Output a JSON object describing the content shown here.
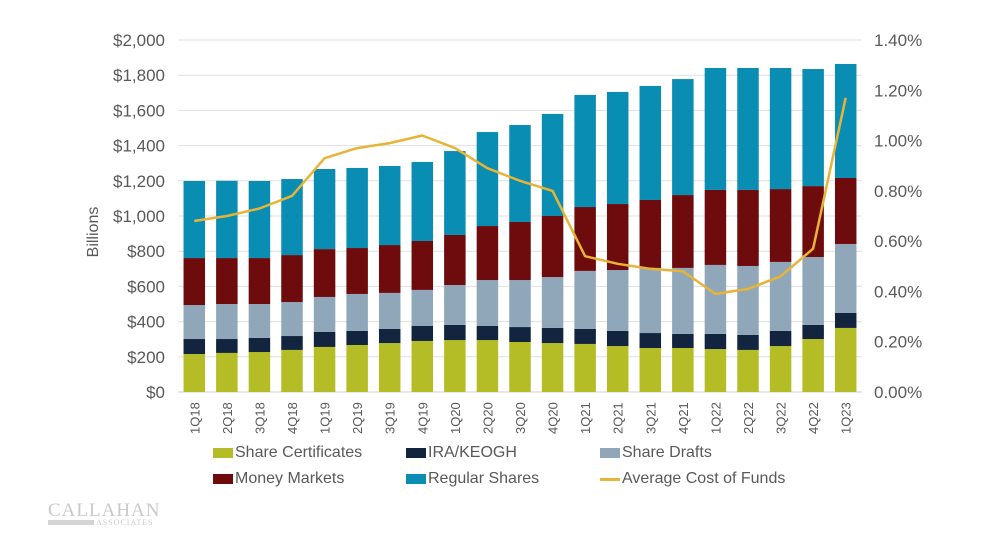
{
  "chart_data": {
    "type": "bar",
    "stacked": true,
    "title": "",
    "xlabel": "",
    "ylabel": "Billions",
    "y2label": "",
    "ylim": [
      0,
      2000
    ],
    "y2lim": [
      0,
      1.4
    ],
    "grid": true,
    "legend_position": "bottom",
    "categories": [
      "1Q18",
      "2Q18",
      "3Q18",
      "4Q18",
      "1Q19",
      "2Q19",
      "3Q19",
      "4Q19",
      "1Q20",
      "2Q20",
      "3Q20",
      "4Q20",
      "1Q21",
      "2Q21",
      "3Q21",
      "4Q21",
      "1Q22",
      "2Q22",
      "3Q22",
      "4Q22",
      "1Q23"
    ],
    "yticks": [
      "$0",
      "$200",
      "$400",
      "$600",
      "$800",
      "$1,000",
      "$1,200",
      "$1,400",
      "$1,600",
      "$1,800",
      "$2,000"
    ],
    "y2ticks": [
      "0.00%",
      "0.20%",
      "0.40%",
      "0.60%",
      "0.80%",
      "1.00%",
      "1.20%",
      "1.40%"
    ],
    "series": [
      {
        "name": "Share Certificates",
        "kind": "bar",
        "color": "#b5bd26",
        "values": [
          216,
          222,
          227,
          239,
          256,
          267,
          278,
          290,
          295,
          295,
          284,
          278,
          273,
          261,
          250,
          250,
          244,
          239,
          261,
          301,
          364
        ]
      },
      {
        "name": "IRA/KEOGH",
        "kind": "bar",
        "color": "#13243f",
        "values": [
          85,
          79,
          80,
          79,
          85,
          80,
          80,
          85,
          86,
          80,
          85,
          86,
          85,
          86,
          85,
          80,
          86,
          85,
          86,
          80,
          85
        ]
      },
      {
        "name": "Share Drafts",
        "kind": "bar",
        "color": "#8fa7b9",
        "values": [
          193,
          199,
          193,
          193,
          199,
          210,
          205,
          205,
          227,
          261,
          267,
          289,
          330,
          346,
          370,
          375,
          392,
          392,
          392,
          386,
          392
        ]
      },
      {
        "name": "Money Markets",
        "kind": "bar",
        "color": "#6e0b0d",
        "values": [
          267,
          261,
          261,
          267,
          272,
          261,
          272,
          278,
          284,
          307,
          330,
          347,
          363,
          375,
          386,
          414,
          426,
          432,
          414,
          403,
          375
        ]
      },
      {
        "name": "Regular Shares",
        "kind": "bar",
        "color": "#0a8db3",
        "values": [
          438,
          439,
          438,
          432,
          455,
          455,
          449,
          449,
          477,
          534,
          551,
          580,
          637,
          637,
          648,
          659,
          693,
          693,
          688,
          665,
          648
        ]
      },
      {
        "name": "Average Cost of Funds",
        "kind": "line",
        "axis": "right",
        "color": "#e7b437",
        "values": [
          0.68,
          0.7,
          0.73,
          0.78,
          0.93,
          0.97,
          0.99,
          1.02,
          0.97,
          0.89,
          0.84,
          0.8,
          0.54,
          0.51,
          0.49,
          0.48,
          0.39,
          0.41,
          0.46,
          0.57,
          1.17
        ]
      }
    ]
  },
  "legend": [
    {
      "label": "Share Certificates",
      "color": "#b5bd26",
      "kind": "bar"
    },
    {
      "label": "IRA/KEOGH",
      "color": "#13243f",
      "kind": "bar"
    },
    {
      "label": "Share Drafts",
      "color": "#8fa7b9",
      "kind": "bar"
    },
    {
      "label": "Money Markets",
      "color": "#6e0b0d",
      "kind": "bar"
    },
    {
      "label": "Regular Shares",
      "color": "#0a8db3",
      "kind": "bar"
    },
    {
      "label": "Average Cost of Funds",
      "color": "#e7b437",
      "kind": "line"
    }
  ],
  "logo": {
    "name": "CALLAHAN",
    "sub": "ASSOCIATES"
  }
}
